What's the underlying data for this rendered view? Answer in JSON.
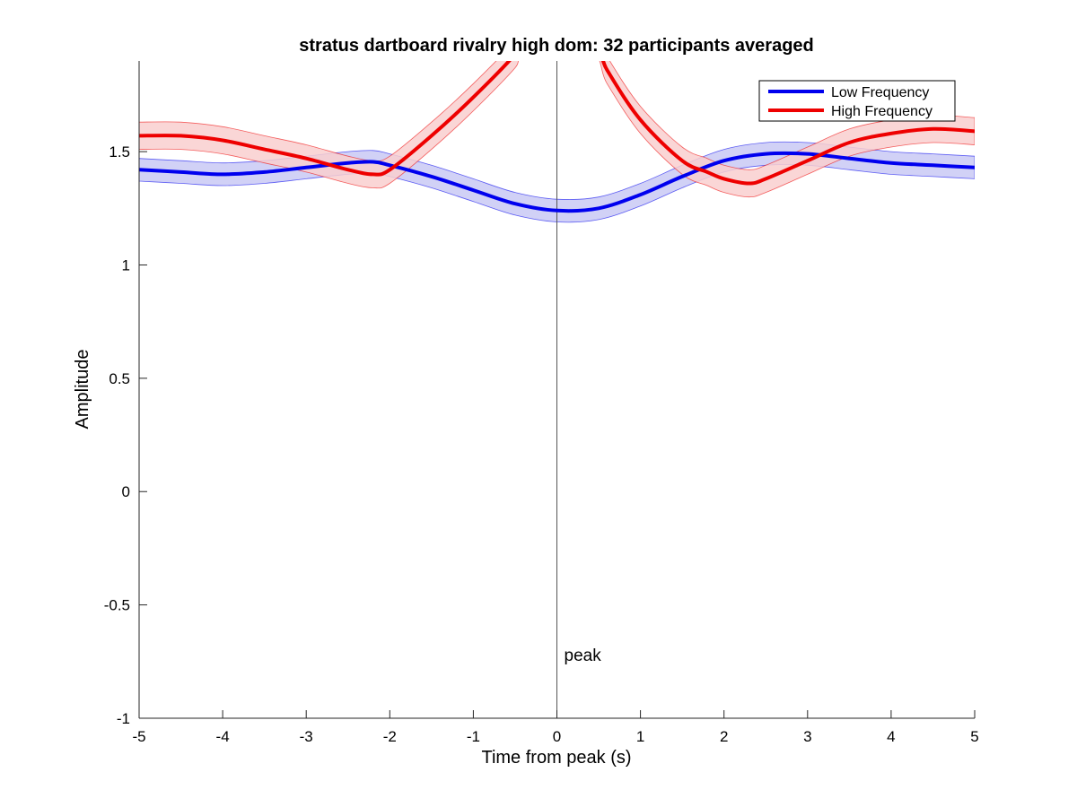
{
  "chart_data": {
    "type": "line",
    "title": "stratus dartboard rivalry high dom: 32 participants averaged",
    "xlabel": "Time from peak (s)",
    "ylabel": "Amplitude",
    "xlim": [
      -5,
      5
    ],
    "ylim": [
      -1,
      1.9
    ],
    "xticks": [
      -5,
      -4,
      -3,
      -2,
      -1,
      0,
      1,
      2,
      3,
      4,
      5
    ],
    "xtick_labels": [
      "-5",
      "-4",
      "-3",
      "-2",
      "-1",
      "0",
      "1",
      "2",
      "3",
      "4",
      "5"
    ],
    "yticks": [
      -1,
      -0.5,
      0,
      0.5,
      1,
      1.5
    ],
    "ytick_labels": [
      "-1",
      "-0.5",
      "0",
      "0.5",
      "1",
      "1.5"
    ],
    "grid": false,
    "legend_position": "top-right",
    "annotation": {
      "text": "peak",
      "x": 0,
      "y": -0.72
    },
    "vertical_line_x": 0,
    "series": [
      {
        "name": "Low Frequency",
        "color": "#0000ee",
        "band_color": "#c9c9f4",
        "band_halfwidth": 0.05,
        "x": [
          -5,
          -4.5,
          -4,
          -3.5,
          -3,
          -2.5,
          -2.2,
          -2,
          -1.5,
          -1,
          -0.5,
          0,
          0.5,
          1,
          1.5,
          2,
          2.5,
          3,
          3.5,
          4,
          4.5,
          5
        ],
        "y": [
          1.42,
          1.41,
          1.4,
          1.41,
          1.43,
          1.45,
          1.455,
          1.44,
          1.39,
          1.33,
          1.27,
          1.24,
          1.25,
          1.31,
          1.39,
          1.46,
          1.49,
          1.49,
          1.47,
          1.45,
          1.44,
          1.43
        ]
      },
      {
        "name": "High Frequency",
        "color": "#ee0000",
        "band_color": "#f9cfcf",
        "band_halfwidth": 0.06,
        "x": [
          -5,
          -4.5,
          -4,
          -3.5,
          -3,
          -2.5,
          -2.2,
          -2,
          -1.5,
          -1,
          -0.5,
          -0.4,
          0.4,
          0.6,
          1,
          1.5,
          1.8,
          2,
          2.3,
          2.5,
          3,
          3.5,
          4,
          4.5,
          5
        ],
        "y": [
          1.57,
          1.57,
          1.55,
          1.51,
          1.47,
          1.42,
          1.4,
          1.42,
          1.57,
          1.74,
          1.93,
          2.0,
          2.0,
          1.86,
          1.64,
          1.46,
          1.41,
          1.38,
          1.36,
          1.38,
          1.46,
          1.54,
          1.58,
          1.6,
          1.59
        ]
      }
    ]
  }
}
